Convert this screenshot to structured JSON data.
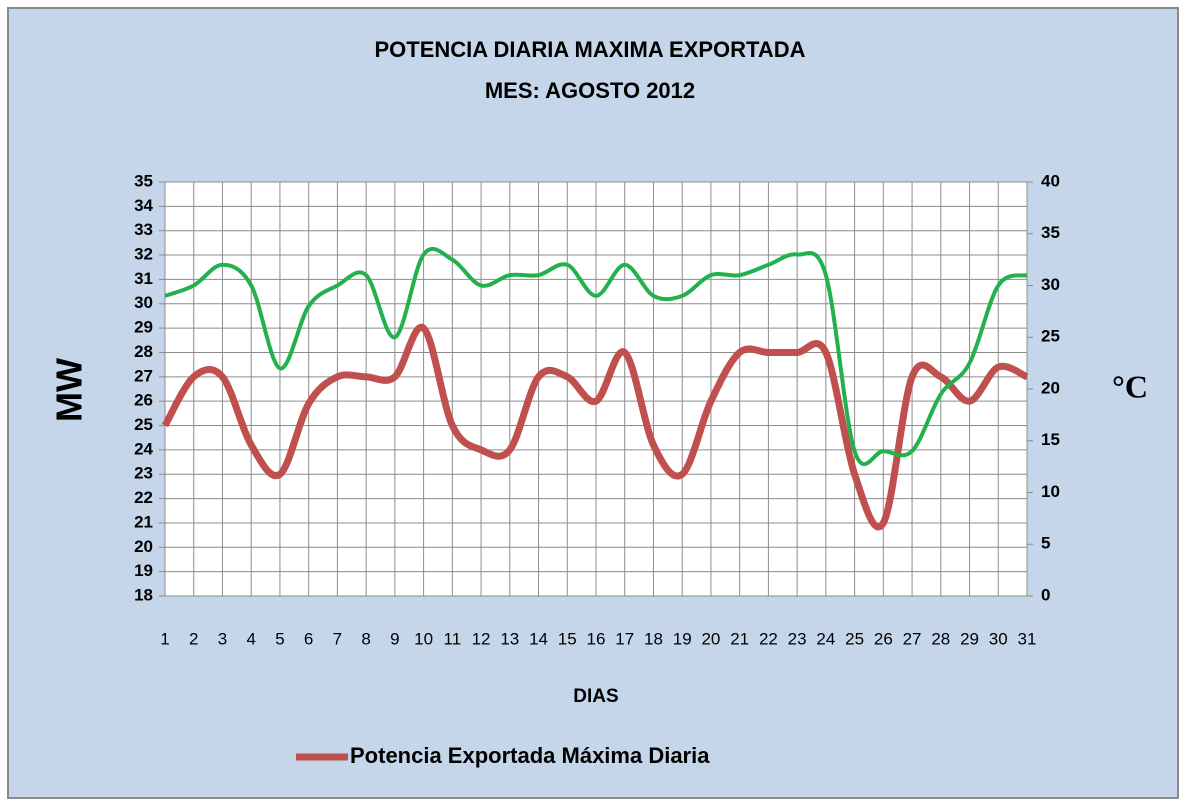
{
  "chart_data": {
    "type": "line",
    "title": "POTENCIA DIARIA MAXIMA EXPORTADA",
    "subtitle": "MES: AGOSTO 2012",
    "x_label": "DIAS",
    "y_label": "MW",
    "y2_label": "°C",
    "categories": [
      "1",
      "2",
      "3",
      "4",
      "5",
      "6",
      "7",
      "8",
      "9",
      "10",
      "11",
      "12",
      "13",
      "14",
      "15",
      "16",
      "17",
      "18",
      "19",
      "20",
      "21",
      "22",
      "23",
      "24",
      "25",
      "26",
      "27",
      "28",
      "29",
      "30",
      "31"
    ],
    "series": [
      {
        "name": "Potencia Exportada Máxima Diaria",
        "color": "#c0504d",
        "values": [
          25,
          27,
          27,
          24.2,
          23,
          25.9,
          27,
          27,
          27,
          29,
          25,
          24,
          24,
          27,
          27,
          26,
          28,
          24.2,
          23,
          26,
          28,
          28,
          28,
          28,
          23,
          21,
          27,
          27,
          26,
          27.4,
          27
        ]
      },
      {
        "color": "#22b14c",
        "axis": "y2",
        "values": [
          29,
          30,
          32,
          30,
          22,
          28,
          30,
          31,
          25,
          33,
          32.5,
          30,
          31,
          31,
          32,
          29,
          32,
          29,
          29,
          31,
          31,
          32,
          33,
          31,
          14,
          14,
          14,
          19.5,
          22.5,
          30,
          31
        ]
      }
    ],
    "ylim": [
      18,
      35
    ],
    "yticks": [
      18,
      19,
      20,
      21,
      22,
      23,
      24,
      25,
      26,
      27,
      28,
      29,
      30,
      31,
      32,
      33,
      34,
      35
    ],
    "y2lim": [
      0,
      40
    ],
    "y2ticks": [
      0,
      5,
      10,
      15,
      20,
      25,
      30,
      35,
      40
    ],
    "grid": true,
    "legend": "bottom"
  }
}
